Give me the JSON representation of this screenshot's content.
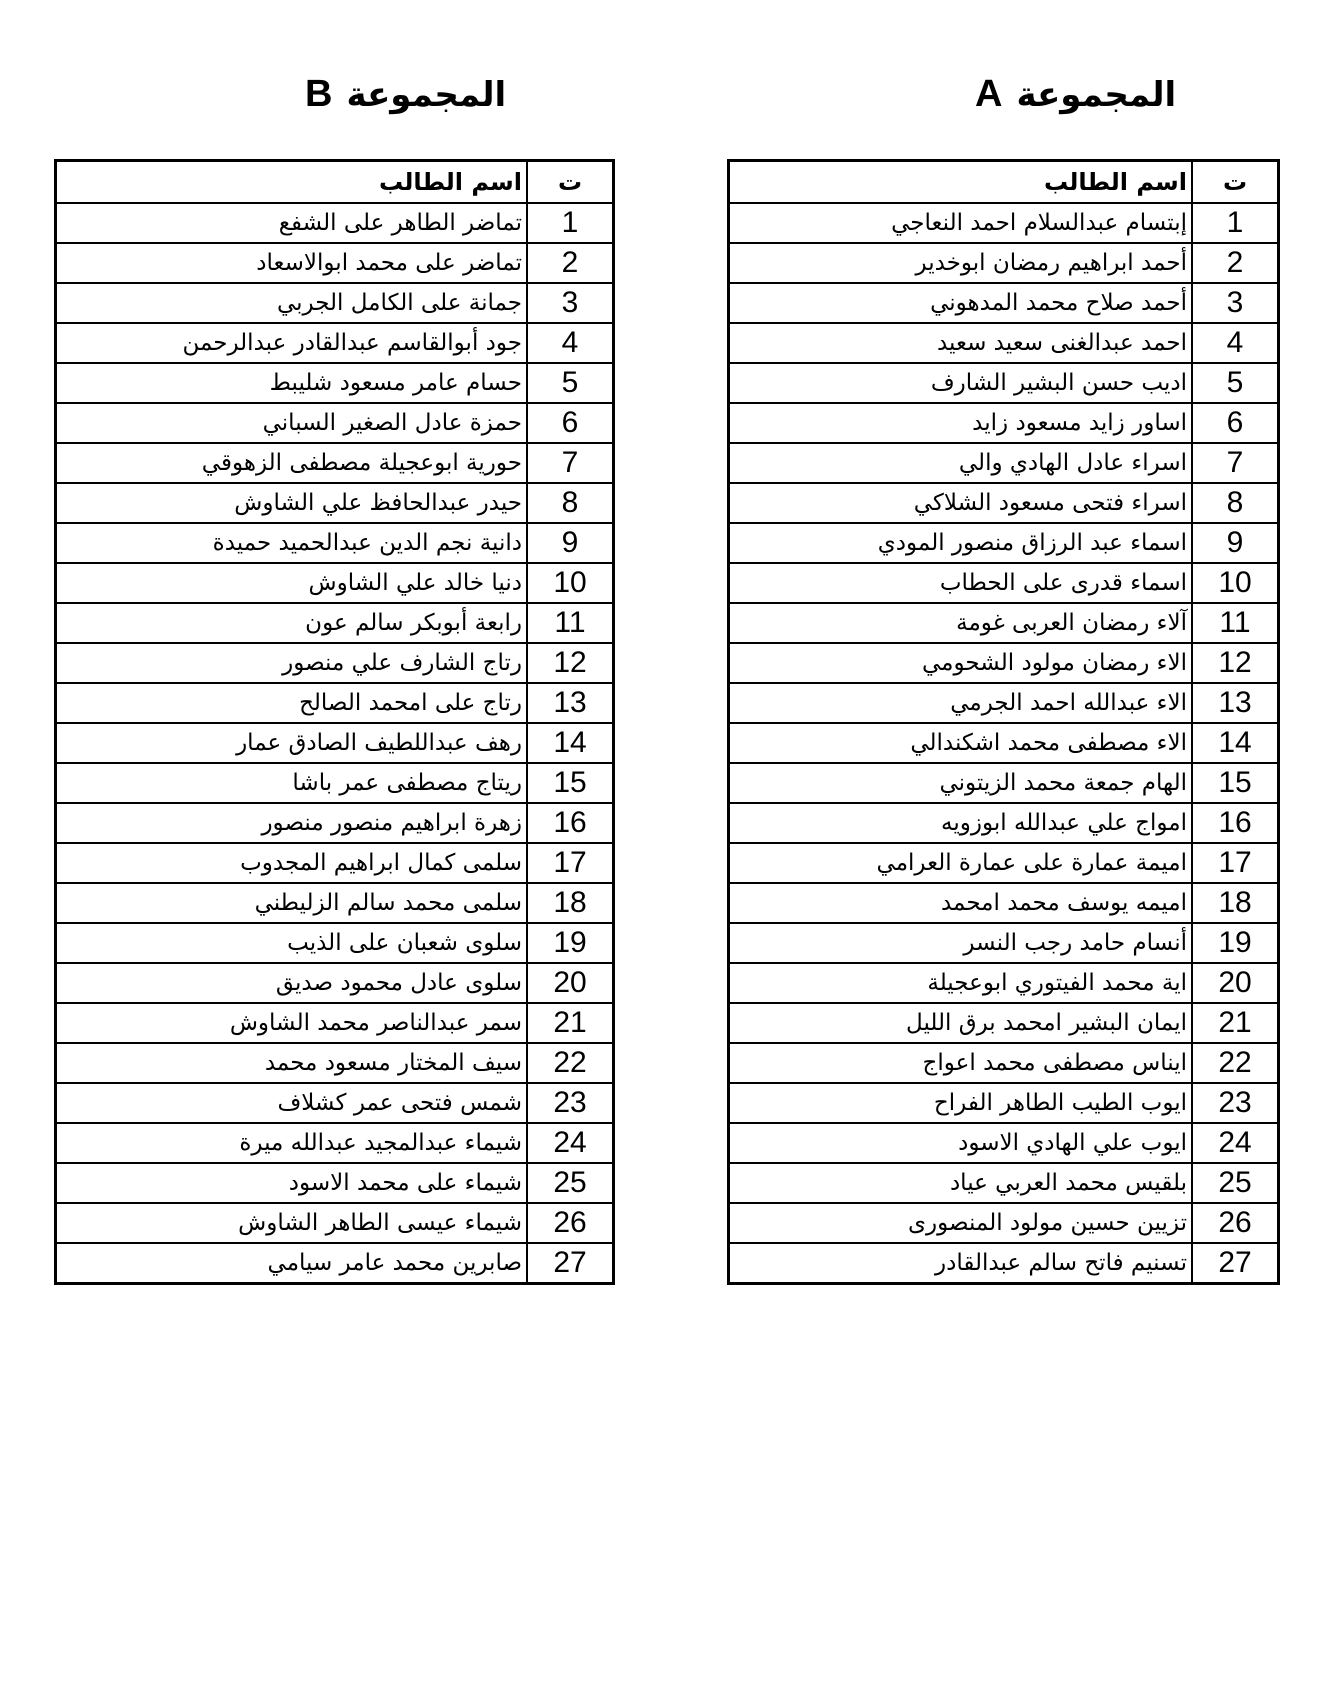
{
  "group_a": {
    "title": "المجموعة",
    "letter": "A",
    "header": {
      "num": "ت",
      "name": "اسم الطالب"
    },
    "students": [
      "إبتسام عبدالسلام احمد  النعاجي",
      "أحمد ابراهيم رمضان  ابوخدير",
      "أحمد صلاح محمد  المدهوني",
      "احمد عبدالغنى سعيد  سعيد",
      "اديب حسن البشير  الشارف",
      "اساور زايد مسعود  زايد",
      "اسراء عادل الهادي  والي",
      "اسراء فتحى مسعود  الشلاكي",
      "اسماء عبد الرزاق منصور  المودي",
      "اسماء قدرى على  الحطاب",
      "آلاء رمضان العربى  غومة",
      "الاء رمضان مولود  الشحومي",
      "الاء عبدالله احمد  الجرمي",
      "الاء مصطفى محمد  اشكندالي",
      "الهام جمعة محمد  الزيتوني",
      "امواج علي عبدالله  ابوزويه",
      "اميمة عمارة على عمارة  العرامي",
      "اميمه يوسف محمد  امحمد",
      "أنسام حامد رجب  النسر",
      "اية محمد الفيتوري  ابوعجيلة",
      "ايمان البشير امحمد  برق الليل",
      "ايناس مصطفى محمد  اعواج",
      "ايوب الطيب الطاهر  الفراح",
      "ايوب علي الهادي  الاسود",
      "بلقيس محمد العربي  عياد",
      "تزيين حسين مولود  المنصورى",
      "تسنيم فاتح سالم  عبدالقادر"
    ]
  },
  "group_b": {
    "title": "المجموعة",
    "letter": "B",
    "header": {
      "num": "ت",
      "name": "اسم الطالب"
    },
    "students": [
      "تماضر الطاهر على  الشفع",
      "تماضر على محمد  ابوالاسعاد",
      "جمانة على الكامل  الجربي",
      "جود أبوالقاسم عبدالقادر  عبدالرحمن",
      "حسام عامر مسعود  شليبط",
      "حمزة عادل الصغير  السباني",
      "حورية ابوعجيلة مصطفى  الزهوقي",
      "حيدر عبدالحافظ علي  الشاوش",
      "دانية نجم الدين عبدالحميد  حميدة",
      "دنيا خالد علي  الشاوش",
      "رابعة أبوبكر سالم  عون",
      "رتاج الشارف علي  منصور",
      "رتاج على امحمد  الصالح",
      "رهف عبداللطيف الصادق  عمار",
      "ريتاج مصطفى عمر  باشا",
      "زهرة ابراهيم منصور  منصور",
      "سلمى كمال ابراهيم  المجدوب",
      "سلمى محمد سالم  الزليطني",
      "سلوى شعبان على  الذيب",
      "سلوى عادل محمود  صديق",
      "سمر عبدالناصر محمد  الشاوش",
      "سيف المختار مسعود  محمد",
      "شمس فتحى عمر  كشلاف",
      "شيماء عبدالمجيد عبدالله  ميرة",
      "شيماء على محمد  الاسود",
      "شيماء عيسى الطاهر الشاوش",
      "صابرين محمد عامر  سيامي"
    ]
  }
}
